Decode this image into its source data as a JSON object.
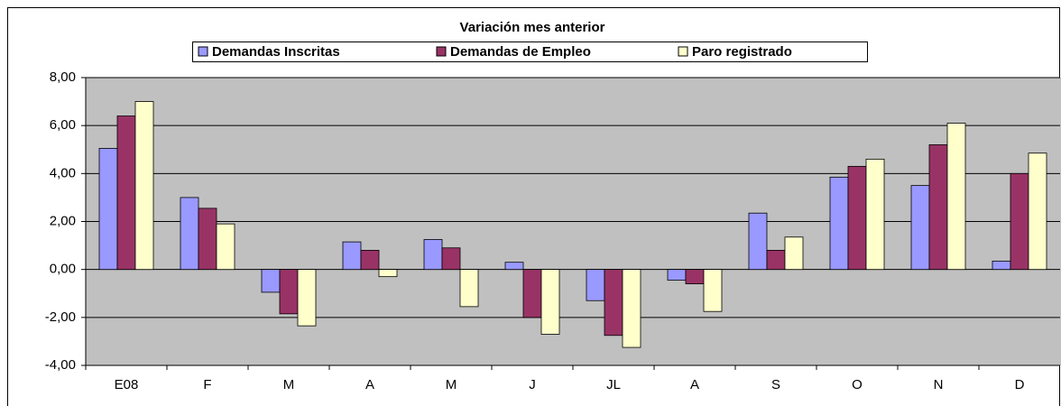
{
  "chart_data": {
    "type": "bar",
    "title": "Variación mes anterior",
    "categories": [
      "E08",
      "F",
      "M",
      "A",
      "M",
      "J",
      "JL",
      "A",
      "S",
      "O",
      "N",
      "D"
    ],
    "series": [
      {
        "name": "Demandas Inscritas",
        "color": "#9999ff",
        "values": [
          5.05,
          3.0,
          -0.95,
          1.15,
          1.25,
          0.3,
          -1.3,
          -0.45,
          2.35,
          3.85,
          3.5,
          0.35
        ]
      },
      {
        "name": "Demandas de Empleo",
        "color": "#993366",
        "values": [
          6.4,
          2.55,
          -1.85,
          0.8,
          0.9,
          -2.0,
          -2.75,
          -0.6,
          0.8,
          4.3,
          5.2,
          4.0
        ]
      },
      {
        "name": "Paro registrado",
        "color": "#ffffcc",
        "values": [
          7.0,
          1.9,
          -2.35,
          -0.3,
          -1.55,
          -2.7,
          -3.25,
          -1.75,
          1.35,
          4.6,
          6.1,
          4.85
        ]
      }
    ],
    "ylim": [
      -4,
      8
    ],
    "yticks": [
      {
        "value": -4,
        "label": "-4,00"
      },
      {
        "value": -2,
        "label": "-2,00"
      },
      {
        "value": 0,
        "label": "0,00"
      },
      {
        "value": 2,
        "label": "2,00"
      },
      {
        "value": 4,
        "label": "4,00"
      },
      {
        "value": 6,
        "label": "6,00"
      },
      {
        "value": 8,
        "label": "8,00"
      }
    ],
    "grid": true,
    "legend": "top"
  }
}
